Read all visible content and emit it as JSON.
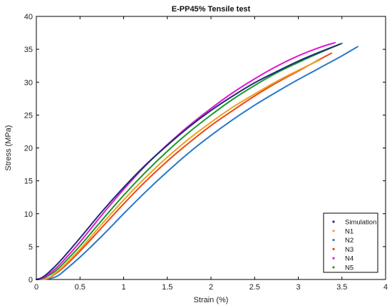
{
  "chart_data": {
    "type": "line",
    "title": "E-PP45% Tensile test",
    "xlabel": "Strain (%)",
    "ylabel": "Stress (MPa)",
    "xlim": [
      0,
      4
    ],
    "ylim": [
      0,
      40
    ],
    "xticks": [
      0,
      0.5,
      1,
      1.5,
      2,
      2.5,
      3,
      3.5,
      4
    ],
    "xtick_labels": [
      "0",
      "0.5",
      "1",
      "1.5",
      "2",
      "2.5",
      "3",
      "3.5",
      "4"
    ],
    "yticks": [
      0,
      5,
      10,
      15,
      20,
      25,
      30,
      35,
      40
    ],
    "ytick_labels": [
      "0",
      "5",
      "10",
      "15",
      "20",
      "25",
      "30",
      "35",
      "40"
    ],
    "grid": false,
    "legend_position": "bottom-right",
    "series": [
      {
        "name": "Simulation",
        "color": "#1f2a7a",
        "x": [
          0.0,
          0.05,
          0.1,
          0.2,
          0.3,
          0.5,
          0.75,
          1.0,
          1.25,
          1.5,
          1.75,
          2.0,
          2.25,
          2.5,
          2.75,
          3.0,
          3.25,
          3.48
        ],
        "y": [
          0.0,
          0.2,
          0.6,
          1.8,
          3.2,
          6.3,
          10.3,
          14.0,
          17.4,
          20.4,
          23.2,
          25.7,
          27.9,
          29.9,
          31.6,
          33.2,
          34.6,
          35.8
        ]
      },
      {
        "name": "N1",
        "color": "#f0a020",
        "x": [
          0.0,
          0.1,
          0.15,
          0.2,
          0.3,
          0.5,
          0.75,
          1.0,
          1.25,
          1.5,
          1.75,
          2.0,
          2.25,
          2.5,
          2.75,
          3.0,
          3.25
        ],
        "y": [
          0.0,
          0.1,
          0.3,
          0.8,
          1.9,
          4.6,
          8.4,
          12.1,
          15.5,
          18.6,
          21.4,
          23.9,
          26.2,
          28.2,
          30.1,
          31.8,
          33.4
        ]
      },
      {
        "name": "N2",
        "color": "#2878c8",
        "x": [
          0.0,
          0.1,
          0.2,
          0.25,
          0.3,
          0.5,
          0.75,
          1.0,
          1.25,
          1.5,
          1.75,
          2.0,
          2.25,
          2.5,
          2.75,
          3.0,
          3.25,
          3.5,
          3.68
        ],
        "y": [
          0.0,
          0.05,
          0.3,
          0.6,
          1.1,
          3.4,
          6.6,
          10.0,
          13.3,
          16.4,
          19.3,
          21.9,
          24.3,
          26.5,
          28.5,
          30.4,
          32.2,
          34.0,
          35.4
        ]
      },
      {
        "name": "N3",
        "color": "#e84818",
        "x": [
          0.0,
          0.1,
          0.15,
          0.2,
          0.3,
          0.5,
          0.75,
          1.0,
          1.25,
          1.5,
          1.75,
          2.0,
          2.25,
          2.5,
          2.75,
          3.0,
          3.25,
          3.38
        ],
        "y": [
          0.0,
          0.1,
          0.3,
          0.7,
          1.7,
          4.3,
          7.9,
          11.5,
          14.9,
          18.0,
          20.8,
          23.4,
          25.7,
          27.9,
          29.9,
          31.7,
          33.5,
          34.4
        ]
      },
      {
        "name": "N4",
        "color": "#e018d0",
        "x": [
          0.0,
          0.05,
          0.1,
          0.2,
          0.3,
          0.5,
          0.75,
          1.0,
          1.25,
          1.5,
          1.75,
          2.0,
          2.25,
          2.5,
          2.75,
          3.0,
          3.25,
          3.42
        ],
        "y": [
          0.0,
          0.1,
          0.4,
          1.4,
          2.7,
          5.7,
          9.8,
          13.7,
          17.3,
          20.5,
          23.4,
          26.0,
          28.4,
          30.5,
          32.4,
          34.0,
          35.3,
          36.0
        ]
      },
      {
        "name": "N5",
        "color": "#1a9a2a",
        "x": [
          0.0,
          0.05,
          0.1,
          0.2,
          0.3,
          0.5,
          0.75,
          1.0,
          1.25,
          1.5,
          1.75,
          2.0,
          2.25,
          2.5,
          2.75,
          3.0,
          3.25,
          3.5
        ],
        "y": [
          0.0,
          0.1,
          0.3,
          1.1,
          2.3,
          5.1,
          9.0,
          12.8,
          16.3,
          19.5,
          22.4,
          25.0,
          27.4,
          29.5,
          31.4,
          33.0,
          34.5,
          35.9
        ]
      }
    ]
  }
}
